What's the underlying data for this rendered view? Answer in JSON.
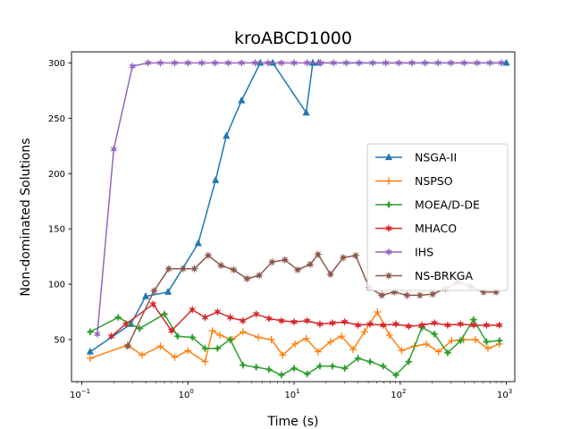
{
  "chart_data": {
    "type": "line",
    "title": "kroABCD1000",
    "xlabel": "Time (s)",
    "ylabel": "Non-dominated Solutions",
    "xscale": "log",
    "xlim": [
      0.08,
      1200
    ],
    "ylim": [
      12,
      310
    ],
    "xticks": [
      {
        "value": 0.1,
        "base": "10",
        "exp": "−1"
      },
      {
        "value": 1,
        "base": "10",
        "exp": "0"
      },
      {
        "value": 10,
        "base": "10",
        "exp": "1"
      },
      {
        "value": 100,
        "base": "10",
        "exp": "2"
      },
      {
        "value": 1000,
        "base": "10",
        "exp": "3"
      }
    ],
    "yticks": [
      50,
      100,
      150,
      200,
      250,
      300
    ],
    "grid": false,
    "legend_position": "center-right",
    "series": [
      {
        "name": "NSGA-II",
        "color": "#1f77b4",
        "marker": "tri",
        "x": [
          0.12,
          0.29,
          0.4,
          0.65,
          1.25,
          1.82,
          2.3,
          3.2,
          4.8,
          6.3,
          13,
          15,
          17,
          1000
        ],
        "y": [
          39,
          64,
          89,
          93,
          137,
          194,
          234,
          266,
          300,
          300,
          255,
          300,
          300,
          300
        ]
      },
      {
        "name": "NSPSO",
        "color": "#ff7f0e",
        "marker": "plus",
        "x": [
          0.12,
          0.27,
          0.37,
          0.55,
          0.75,
          1.0,
          1.45,
          1.7,
          2.0,
          2.6,
          3.3,
          4.6,
          6.1,
          7.8,
          10.2,
          13.0,
          16.8,
          22,
          28,
          36,
          46,
          61,
          79,
          103,
          136,
          176,
          230,
          305,
          395,
          510,
          670,
          860
        ],
        "y": [
          33,
          45,
          36,
          44,
          34,
          40,
          30,
          58,
          54,
          50,
          57,
          52,
          50,
          36,
          46,
          51,
          39,
          48,
          53,
          41,
          57,
          75,
          54,
          40,
          44,
          46,
          39,
          49,
          50,
          50,
          42,
          46
        ]
      },
      {
        "name": "MOEA/D-DE",
        "color": "#2ca02c",
        "marker": "star4",
        "x": [
          0.12,
          0.22,
          0.35,
          0.6,
          0.8,
          1.1,
          1.45,
          1.9,
          2.5,
          3.3,
          4.4,
          5.8,
          7.6,
          10,
          13.3,
          17.5,
          23,
          30,
          40,
          52,
          69,
          91,
          120,
          160,
          210,
          280,
          370,
          490,
          650,
          860
        ],
        "y": [
          57,
          70,
          60,
          73,
          53,
          52,
          42,
          42,
          50,
          27,
          25,
          23,
          18,
          24,
          19,
          26,
          26,
          24,
          33,
          30,
          26,
          18,
          30,
          61,
          55,
          38,
          49,
          68,
          48,
          49
        ]
      },
      {
        "name": "MHACO",
        "color": "#d62728",
        "marker": "star6",
        "x": [
          0.19,
          0.26,
          0.47,
          0.7,
          1.1,
          1.45,
          1.9,
          2.5,
          3.3,
          4.4,
          5.8,
          7.6,
          10,
          13.3,
          17.5,
          23,
          30,
          40,
          52,
          69,
          91,
          120,
          160,
          210,
          280,
          370,
          490,
          650,
          860
        ],
        "y": [
          53,
          64,
          82,
          58,
          77,
          70,
          75,
          70,
          67,
          73,
          69,
          67,
          66,
          67,
          64,
          65,
          66,
          63,
          64,
          63,
          64,
          62,
          63,
          65,
          63,
          64,
          63,
          63,
          63
        ]
      },
      {
        "name": "IHS",
        "color": "#9467bd",
        "marker": "star6",
        "x": [
          0.14,
          0.2,
          0.3,
          0.42,
          0.55,
          0.75,
          1.0,
          1.35,
          1.8,
          2.4,
          3.2,
          4.3,
          5.7,
          7.6,
          10,
          13.3,
          17.7,
          23.5,
          31,
          41,
          55,
          73,
          97,
          129,
          171,
          227,
          300,
          400,
          530,
          700,
          900
        ],
        "y": [
          55,
          222,
          297,
          300,
          300,
          300,
          300,
          300,
          300,
          300,
          300,
          300,
          300,
          300,
          300,
          300,
          300,
          300,
          300,
          300,
          300,
          300,
          300,
          300,
          300,
          300,
          300,
          300,
          300,
          300,
          300
        ]
      },
      {
        "name": "NS-BRKGA",
        "color": "#8c564b",
        "marker": "star8",
        "x": [
          0.27,
          0.48,
          0.66,
          0.9,
          1.15,
          1.55,
          2.05,
          2.7,
          3.6,
          4.7,
          6.2,
          8.2,
          10.8,
          14.2,
          16.8,
          22,
          29,
          38,
          51,
          67,
          88,
          116,
          153,
          202,
          266,
          350,
          460,
          610,
          800
        ],
        "y": [
          44,
          94,
          114,
          114,
          114,
          126,
          117,
          113,
          105,
          108,
          120,
          122,
          113,
          118,
          127,
          109,
          124,
          126,
          97,
          90,
          93,
          90,
          90,
          91,
          96,
          102,
          98,
          93,
          93
        ]
      }
    ]
  }
}
